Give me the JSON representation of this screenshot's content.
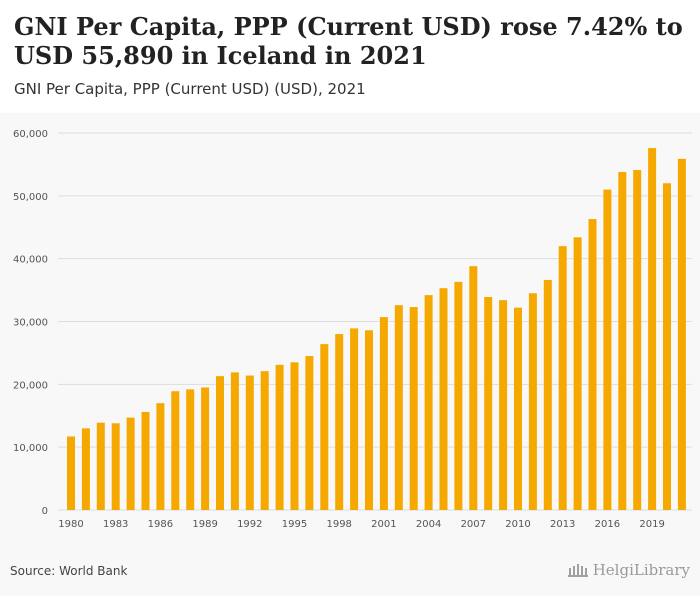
{
  "header": {
    "title": "GNI Per Capita, PPP (Current USD) rose 7.42% to USD 55,890 in Iceland in 2021",
    "subtitle": "GNI Per Capita, PPP (Current USD) (USD), 2021"
  },
  "footer": {
    "source": "Source: World Bank",
    "logo_text": "HelgiLibrary"
  },
  "colors": {
    "bar": "#f5a800",
    "grid": "#dddddd",
    "axis_text": "#555555"
  },
  "chart_data": {
    "type": "bar",
    "categories": [
      "1980",
      "1981",
      "1982",
      "1983",
      "1984",
      "1985",
      "1986",
      "1987",
      "1988",
      "1989",
      "1990",
      "1991",
      "1992",
      "1993",
      "1994",
      "1995",
      "1996",
      "1997",
      "1998",
      "1999",
      "2000",
      "2001",
      "2002",
      "2003",
      "2004",
      "2005",
      "2006",
      "2007",
      "2008",
      "2009",
      "2010",
      "2011",
      "2012",
      "2013",
      "2014",
      "2015",
      "2016",
      "2017",
      "2018",
      "2019",
      "2020",
      "2021"
    ],
    "x_tick_labels": [
      "1980",
      "1983",
      "1986",
      "1989",
      "1992",
      "1995",
      "1998",
      "2001",
      "2004",
      "2007",
      "2010",
      "2013",
      "2016",
      "2019"
    ],
    "values": [
      11700,
      13000,
      13900,
      13800,
      14700,
      15600,
      17000,
      18900,
      19200,
      19500,
      21300,
      21900,
      21400,
      22100,
      23100,
      23500,
      24500,
      26400,
      28000,
      28900,
      28600,
      30700,
      32600,
      32300,
      34200,
      35300,
      36300,
      38800,
      33900,
      33400,
      32200,
      34500,
      36600,
      42000,
      43400,
      46300,
      51000,
      53800,
      54100,
      57600,
      52000,
      55890
    ],
    "y_ticks": [
      0,
      10000,
      20000,
      30000,
      40000,
      50000,
      60000
    ],
    "y_tick_labels": [
      "0",
      "10,000",
      "20,000",
      "30,000",
      "40,000",
      "50,000",
      "60,000"
    ],
    "ylim": [
      0,
      60000
    ],
    "grid": true,
    "legend": "none"
  }
}
